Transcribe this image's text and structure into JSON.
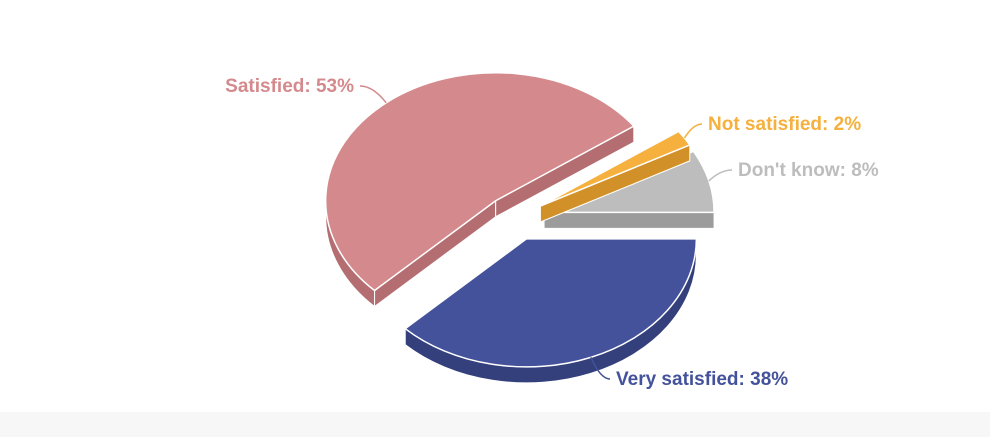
{
  "chart_data": {
    "type": "pie",
    "title": "",
    "exploded": true,
    "three_d": true,
    "slices": [
      {
        "label": "Very satisfied",
        "value": 38,
        "display": "Very satisfied: 38%",
        "color": "#43529a",
        "side_color": "#34407c"
      },
      {
        "label": "Satisfied",
        "value": 53,
        "display": "Satisfied: 53%",
        "color": "#d48a8d",
        "side_color": "#b46e72"
      },
      {
        "label": "Not satisfied",
        "value": 2,
        "display": "Not satisfied: 2%",
        "color": "#f5b03e",
        "side_color": "#d29128"
      },
      {
        "label": "Don't know",
        "value": 8,
        "display": "Don't know: 8%",
        "color": "#bdbdbd",
        "side_color": "#9c9c9c"
      }
    ]
  }
}
